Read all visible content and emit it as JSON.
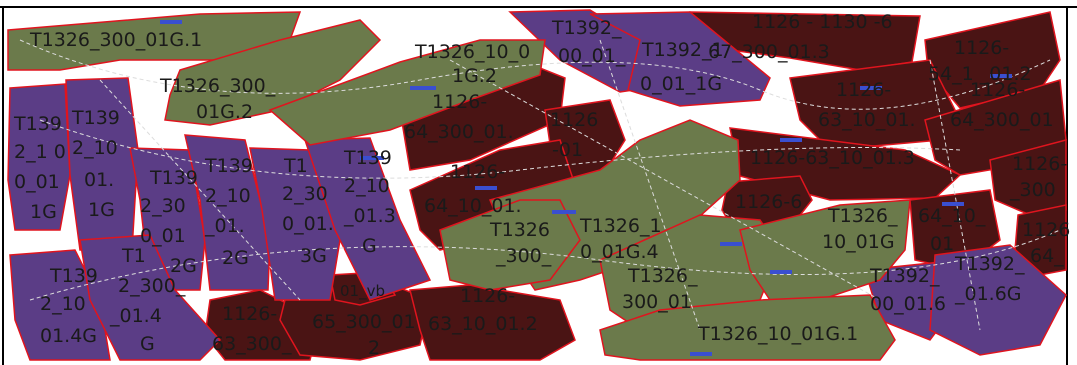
{
  "colors": {
    "green": "#6b7a4b",
    "purple": "#5b3d86",
    "maroon": "#4a1414",
    "outline": "#e0141e",
    "links": "#d8d8d8",
    "frame": "#000000"
  },
  "labels": {
    "g1": "T1326_300_01G.1",
    "g2a": "T1326_300_",
    "g2b": "01G.2",
    "g3a": "T1326_10_0",
    "g3b": "1G.2",
    "g4a": "T1326_1",
    "g4b": "0_01G.4",
    "g5a": "T1326",
    "g5b": "_300_",
    "g6a": "T1326_",
    "g6b": "300_01",
    "g7a": "T1326_",
    "g7b": "10_01G",
    "g8": "T1326_10_01G.1",
    "p1a": "T1392_",
    "p1b": "00_01_",
    "p2a": "T1392_1",
    "p2b": "0_01_1G",
    "p3a": "T139",
    "p3b": "2_1 0",
    "p3c": "0_01",
    "p3d": "1G",
    "p4a": "T139",
    "p4b": "2_10",
    "p4c": "01.",
    "p4d": "1G",
    "p5a": "T139",
    "p5b": "2_30",
    "p5c": "0_01",
    "p5d": "2G",
    "p6a": "T139",
    "p6b": "2_10",
    "p6c": "_01.",
    "p6d": "2G",
    "p7a": "T1",
    "p7b": "2_30",
    "p7c": "0_01.",
    "p7d": "3G",
    "p8a": "T139",
    "p8b": "2_10",
    "p8c": "_01.3",
    "p8d": "G",
    "p9a": "T139",
    "p9b": "2_10",
    "p9c": "01.4G",
    "p10a": "T1",
    "p10b": "2_300_",
    "p10c": "_01.4",
    "p10d": "G",
    "p11a": "T1392_",
    "p11b": "00_01.6",
    "p12a": "T1392_",
    "p12b": "_01.6G",
    "m1a": "1126 - 1130 -6",
    "m1b": "67_300_01.3",
    "m2a": "1126-",
    "m2b": "54_1 _01.2",
    "m3a": "1126-",
    "m3b": "63_10_01.",
    "m4a": "1126-",
    "m4b": "64_300_01",
    "m5a": "1126-",
    "m5b": "64_300_01.",
    "m6a": "1126",
    "m6b": "-01",
    "m7": "1126-63_10_01.3",
    "m8a": "1126-",
    "m8b": "64_10_01.",
    "m9": "1126-6",
    "m10a": "1126-",
    "m10b": "_300",
    "m11a": "64_10_",
    "m11b": "01",
    "m12a": "1126",
    "m12b": "64_",
    "m13a": "1126-",
    "m13b": "63_300_",
    "m14a": "65_300_01",
    "m14b": "2",
    "m15a": "1126-",
    "m15b": "63_10_01.2",
    "m16": "01_vb"
  }
}
